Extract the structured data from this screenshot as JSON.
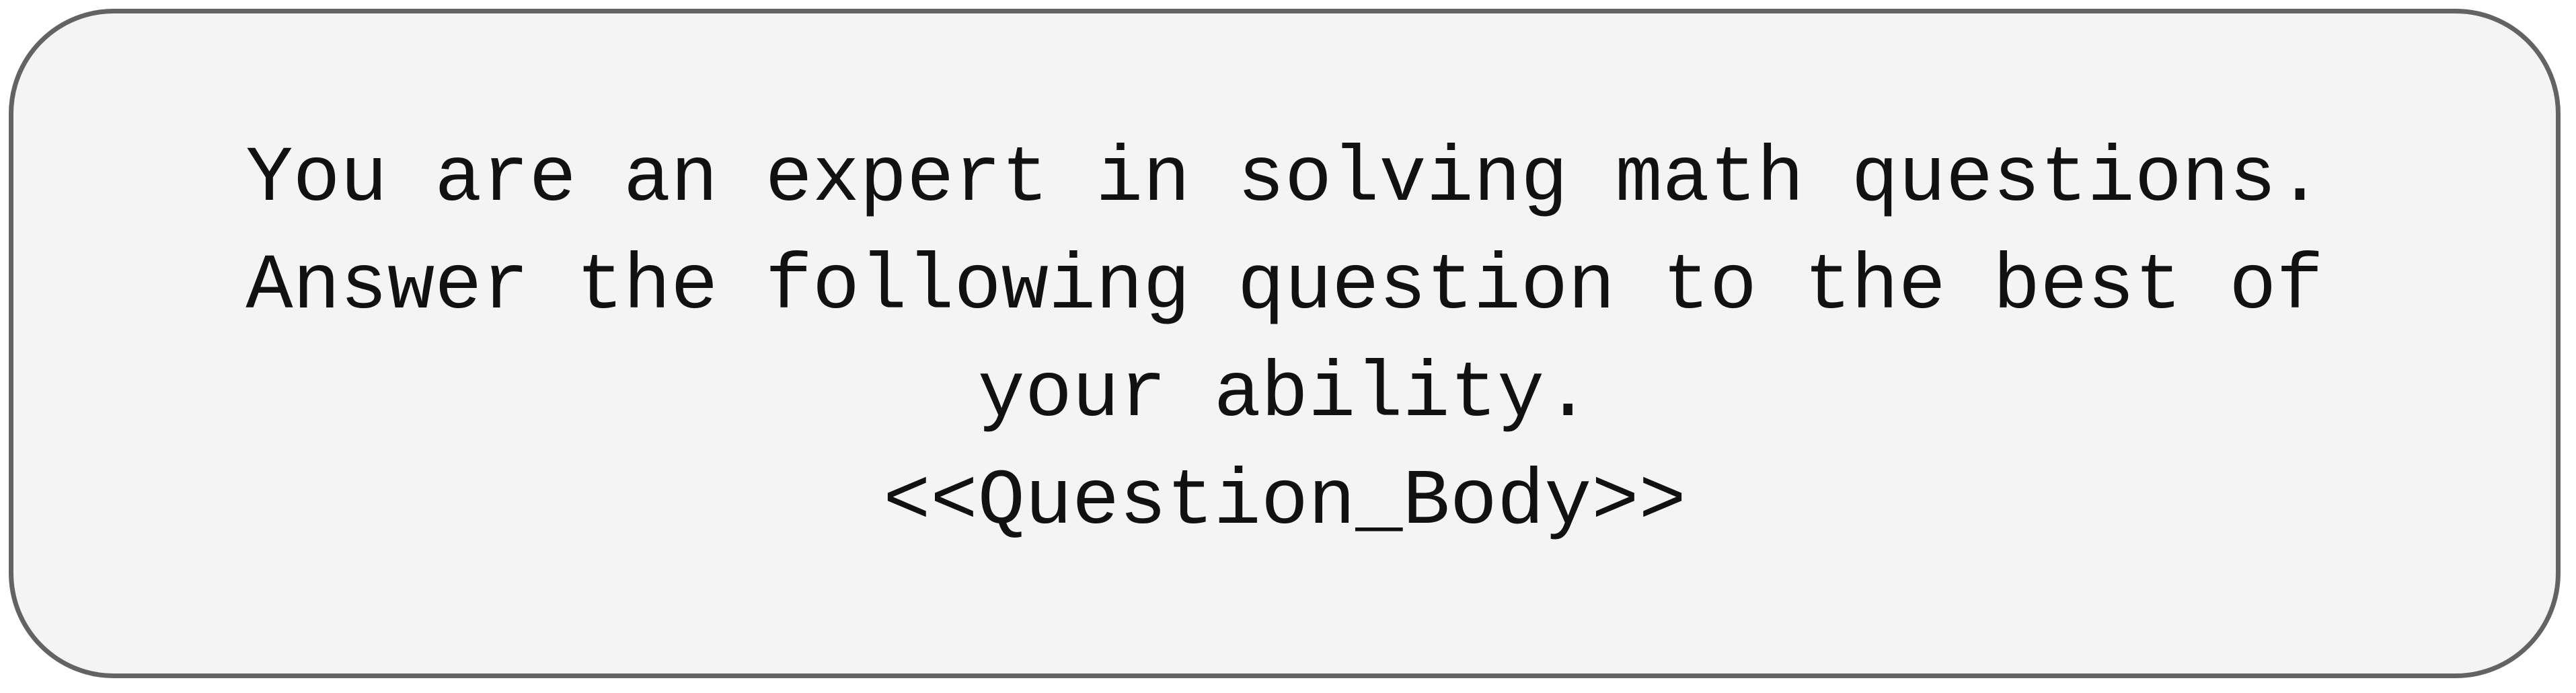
{
  "prompt": {
    "lines": [
      "You are an expert in solving math questions.",
      "Answer the following question to the best of",
      "your ability.",
      "<<Question_Body>>"
    ]
  }
}
